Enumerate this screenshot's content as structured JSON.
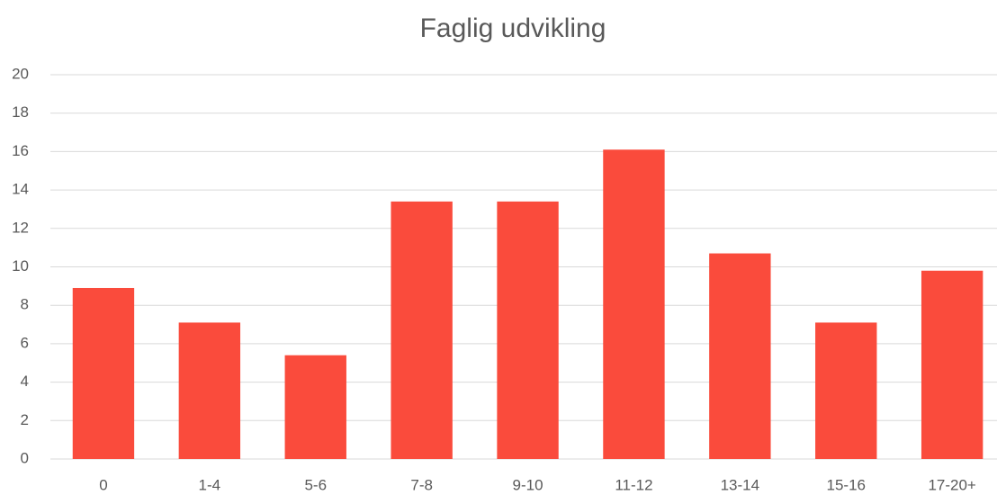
{
  "chart_data": {
    "type": "bar",
    "title": "Faglig udvikling",
    "categories": [
      "0",
      "1-4",
      "5-6",
      "7-8",
      "9-10",
      "11-12",
      "13-14",
      "15-16",
      "17-20+"
    ],
    "values": [
      8.9,
      7.1,
      5.4,
      13.4,
      13.4,
      16.1,
      10.7,
      7.1,
      9.8
    ],
    "color": "#fa4b3c",
    "ylim": [
      0,
      20
    ],
    "yticks": [
      0,
      2,
      4,
      6,
      8,
      10,
      12,
      14,
      16,
      18,
      20
    ],
    "grid": true
  }
}
